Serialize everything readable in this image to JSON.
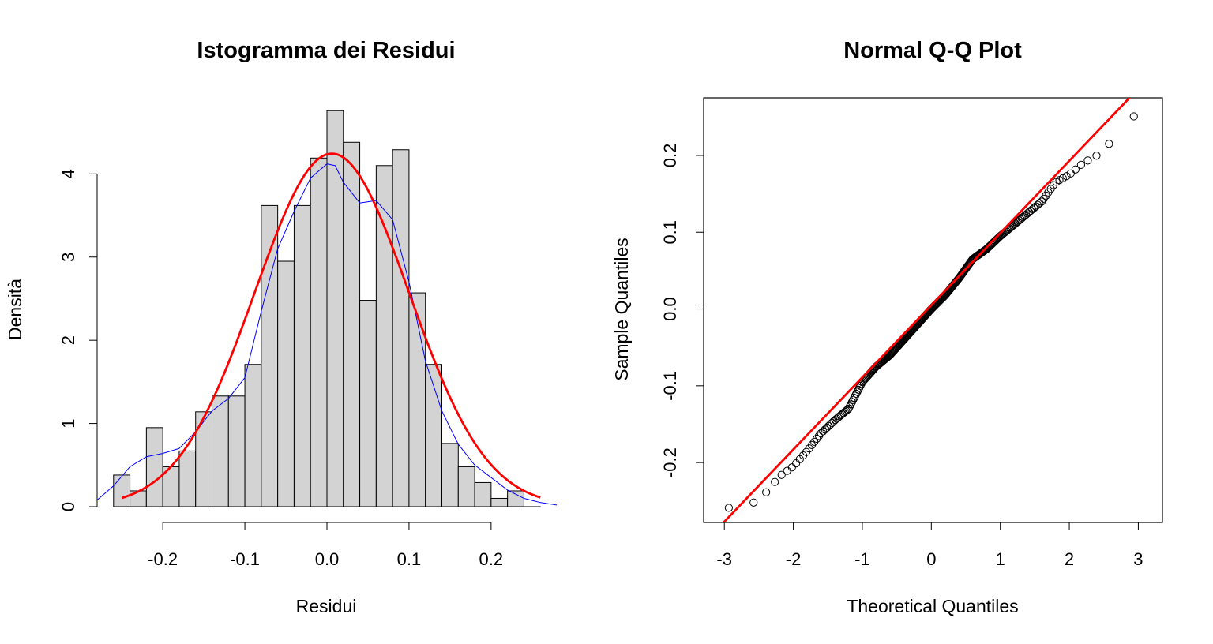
{
  "chart_data": [
    {
      "type": "histogram",
      "title": "Istogramma dei Residui",
      "xlabel": "Residui",
      "ylabel": "Densità",
      "xlim": [
        -0.28,
        0.28
      ],
      "ylim": [
        0,
        4.8
      ],
      "xticks": [
        -0.2,
        -0.1,
        0.0,
        0.1,
        0.2
      ],
      "xtick_labels": [
        "-0.2",
        "-0.1",
        "0.0",
        "0.1",
        "0.2"
      ],
      "yticks": [
        0,
        1,
        2,
        3,
        4
      ],
      "ytick_labels": [
        "0",
        "1",
        "2",
        "3",
        "4"
      ],
      "bin_edges": [
        -0.26,
        -0.24,
        -0.22,
        -0.2,
        -0.18,
        -0.16,
        -0.14,
        -0.12,
        -0.1,
        -0.08,
        -0.06,
        -0.04,
        -0.02,
        0.0,
        0.02,
        0.04,
        0.06,
        0.08,
        0.1,
        0.12,
        0.14,
        0.16,
        0.18,
        0.2,
        0.22,
        0.24,
        0.26
      ],
      "densities": [
        0.38,
        0.19,
        0.95,
        0.48,
        0.67,
        1.14,
        1.33,
        1.33,
        1.71,
        3.62,
        2.95,
        3.62,
        4.19,
        4.76,
        4.38,
        2.48,
        4.1,
        4.29,
        2.57,
        1.71,
        0.76,
        0.48,
        0.29,
        0.1,
        0.19,
        0.0
      ],
      "bar_fill": "#d3d3d3",
      "normal_curve": {
        "mean": 0.006,
        "sd": 0.094,
        "color": "#ff0000"
      },
      "kde_curve": {
        "color": "#0000ff",
        "x": [
          -0.28,
          -0.26,
          -0.24,
          -0.22,
          -0.2,
          -0.18,
          -0.16,
          -0.14,
          -0.12,
          -0.1,
          -0.08,
          -0.06,
          -0.04,
          -0.02,
          0.0,
          0.01,
          0.02,
          0.04,
          0.06,
          0.08,
          0.1,
          0.12,
          0.14,
          0.16,
          0.18,
          0.2,
          0.22,
          0.24,
          0.26,
          0.28
        ],
        "y": [
          0.08,
          0.25,
          0.48,
          0.6,
          0.64,
          0.7,
          0.9,
          1.15,
          1.3,
          1.55,
          2.35,
          3.1,
          3.55,
          3.95,
          4.12,
          4.1,
          3.9,
          3.65,
          3.68,
          3.45,
          2.7,
          1.75,
          1.15,
          0.75,
          0.5,
          0.35,
          0.2,
          0.1,
          0.05,
          0.02
        ]
      }
    },
    {
      "type": "scatter",
      "title": "Normal Q-Q Plot",
      "xlabel": "Theoretical Quantiles",
      "ylabel": "Sample Quantiles",
      "xlim": [
        -3.3,
        3.35
      ],
      "ylim": [
        -0.278,
        0.275
      ],
      "xticks": [
        -3,
        -2,
        -1,
        0,
        1,
        2,
        3
      ],
      "xtick_labels": [
        "-3",
        "-2",
        "-1",
        "0",
        "1",
        "2",
        "3"
      ],
      "yticks": [
        -0.2,
        -0.1,
        0.0,
        0.1,
        0.2
      ],
      "ytick_labels": [
        "-0.2",
        "-0.1",
        "0.0",
        "0.1",
        "0.2"
      ],
      "n_points": 300,
      "sample_quantiles_by_theoretical": {
        "x": [
          -3.1,
          -2.8,
          -2.5,
          -2.2,
          -2.0,
          -1.8,
          -1.6,
          -1.4,
          -1.2,
          -1.0,
          -0.8,
          -0.6,
          -0.4,
          -0.2,
          0.0,
          0.2,
          0.4,
          0.6,
          0.8,
          1.0,
          1.2,
          1.4,
          1.6,
          1.8,
          2.0,
          2.2,
          2.5,
          2.8,
          3.1
        ],
        "y": [
          -0.26,
          -0.258,
          -0.25,
          -0.218,
          -0.205,
          -0.185,
          -0.162,
          -0.145,
          -0.13,
          -0.095,
          -0.075,
          -0.06,
          -0.04,
          -0.02,
          0.0,
          0.018,
          0.04,
          0.065,
          0.078,
          0.095,
          0.11,
          0.125,
          0.14,
          0.165,
          0.175,
          0.19,
          0.205,
          0.245,
          0.258
        ]
      },
      "point_color": "#000000",
      "qq_line": {
        "intercept": 0.005,
        "slope": 0.094,
        "color": "#ff0000"
      }
    }
  ]
}
